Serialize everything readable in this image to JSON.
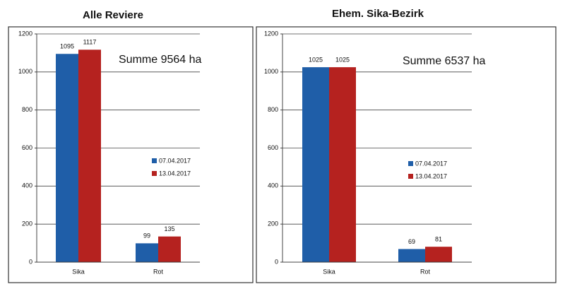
{
  "chart_data": [
    {
      "type": "bar",
      "title": "Alle Reviere",
      "annotation": "Summe 9564 ha",
      "categories": [
        "Sika",
        "Rot"
      ],
      "series": [
        {
          "name": "07.04.2017",
          "color": "#1f5ea8",
          "values": [
            1095,
            99
          ]
        },
        {
          "name": "13.04.2017",
          "color": "#b5221f",
          "values": [
            1117,
            135
          ]
        }
      ],
      "ylim": [
        0,
        1200
      ],
      "yticks": [
        0,
        200,
        400,
        600,
        800,
        1000,
        1200
      ],
      "grid": true,
      "value_labels_shown": true
    },
    {
      "type": "bar",
      "title": "Ehem. Sika-Bezirk",
      "annotation": "Summe 6537 ha",
      "categories": [
        "Sika",
        "Rot"
      ],
      "series": [
        {
          "name": "07.04.2017",
          "color": "#1f5ea8",
          "values": [
            1025,
            69
          ]
        },
        {
          "name": "13.04.2017",
          "color": "#b5221f",
          "values": [
            1025,
            81
          ]
        }
      ],
      "ylim": [
        0,
        1200
      ],
      "yticks": [
        0,
        200,
        400,
        600,
        800,
        1000,
        1200
      ],
      "grid": true,
      "value_labels_shown": true
    }
  ]
}
